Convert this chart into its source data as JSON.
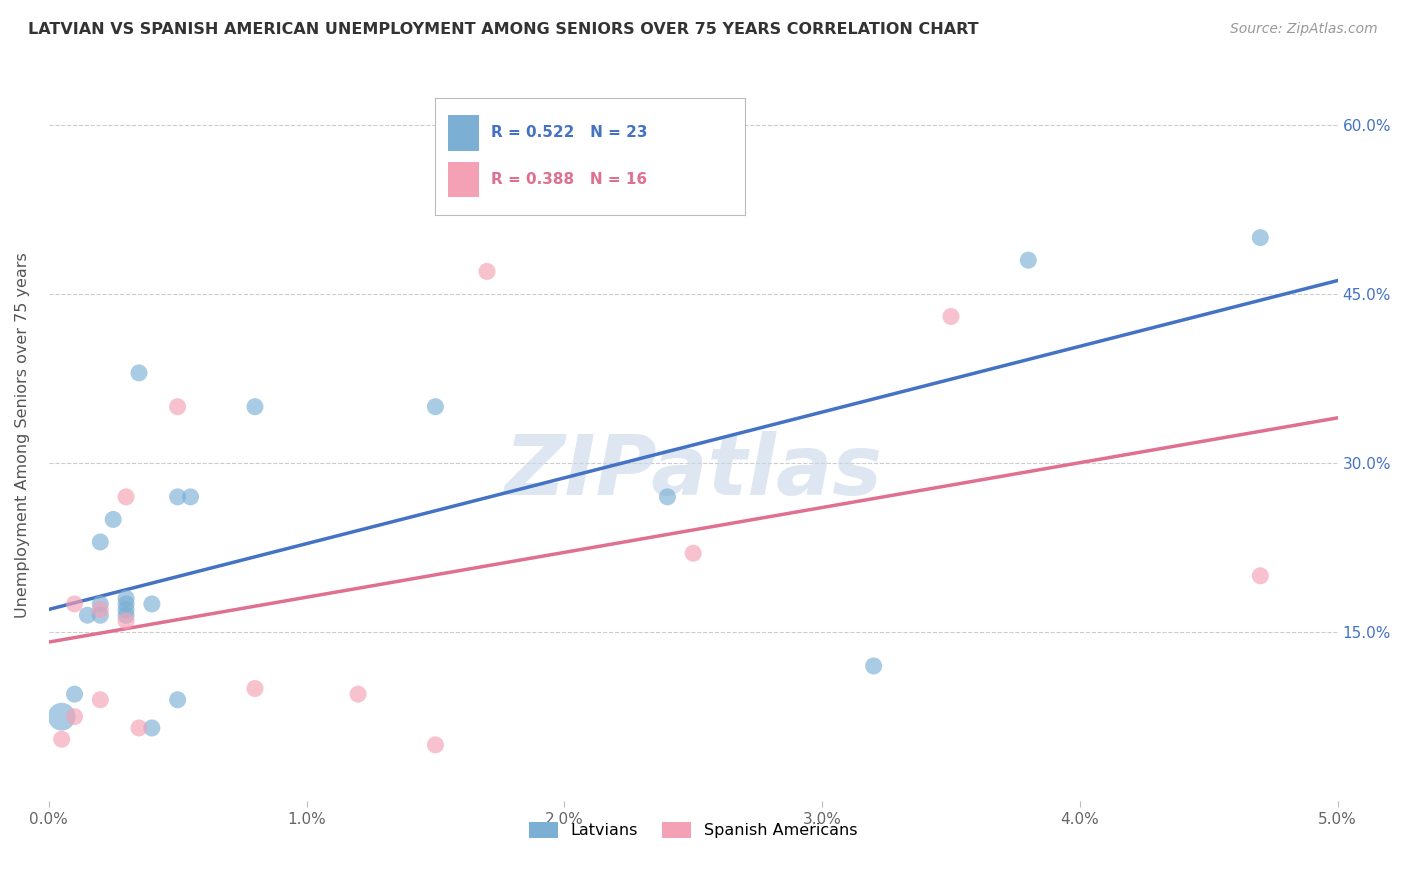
{
  "title": "LATVIAN VS SPANISH AMERICAN UNEMPLOYMENT AMONG SENIORS OVER 75 YEARS CORRELATION CHART",
  "source": "Source: ZipAtlas.com",
  "ylabel": "Unemployment Among Seniors over 75 years",
  "xlim": [
    0.0,
    0.05
  ],
  "ylim": [
    0.0,
    0.65
  ],
  "xticks": [
    0.0,
    0.01,
    0.02,
    0.03,
    0.04,
    0.05
  ],
  "yticks": [
    0.15,
    0.3,
    0.45,
    0.6
  ],
  "ytick_labels": [
    "15.0%",
    "30.0%",
    "45.0%",
    "60.0%"
  ],
  "xtick_labels": [
    "0.0%",
    "1.0%",
    "2.0%",
    "3.0%",
    "4.0%",
    "5.0%"
  ],
  "latvian_color": "#7bafd4",
  "spanish_color": "#f4a0b5",
  "latvian_R": 0.522,
  "latvian_N": 23,
  "spanish_R": 0.388,
  "spanish_N": 16,
  "latvian_x": [
    0.0005,
    0.001,
    0.0015,
    0.002,
    0.002,
    0.002,
    0.0025,
    0.003,
    0.003,
    0.003,
    0.003,
    0.0035,
    0.004,
    0.004,
    0.005,
    0.005,
    0.0055,
    0.008,
    0.015,
    0.024,
    0.032,
    0.038,
    0.047
  ],
  "latvian_y": [
    0.075,
    0.095,
    0.165,
    0.165,
    0.175,
    0.23,
    0.25,
    0.165,
    0.17,
    0.175,
    0.18,
    0.38,
    0.065,
    0.175,
    0.09,
    0.27,
    0.27,
    0.35,
    0.35,
    0.27,
    0.12,
    0.48,
    0.5
  ],
  "latvian_size": [
    400,
    150,
    150,
    150,
    150,
    150,
    150,
    150,
    150,
    150,
    150,
    150,
    150,
    150,
    150,
    150,
    150,
    150,
    150,
    150,
    150,
    150,
    150
  ],
  "spanish_x": [
    0.0005,
    0.001,
    0.001,
    0.002,
    0.002,
    0.003,
    0.003,
    0.0035,
    0.005,
    0.008,
    0.012,
    0.015,
    0.017,
    0.025,
    0.035,
    0.047
  ],
  "spanish_y": [
    0.055,
    0.075,
    0.175,
    0.09,
    0.17,
    0.16,
    0.27,
    0.065,
    0.35,
    0.1,
    0.095,
    0.05,
    0.47,
    0.22,
    0.43,
    0.2
  ],
  "spanish_size": [
    150,
    150,
    150,
    150,
    150,
    150,
    150,
    150,
    150,
    150,
    150,
    150,
    150,
    150,
    150,
    150
  ],
  "background_color": "#ffffff",
  "grid_color": "#cccccc",
  "latvian_line_color": "#4472c4",
  "spanish_line_color": "#e07090",
  "tick_color": "#4472c4",
  "legend_blue_text_color": "#4472c4",
  "legend_pink_text_color": "#e07090",
  "watermark_text": "ZIPatlas",
  "watermark_color": "#c8d8e8",
  "legend_bottom": [
    "Latvians",
    "Spanish Americans"
  ]
}
